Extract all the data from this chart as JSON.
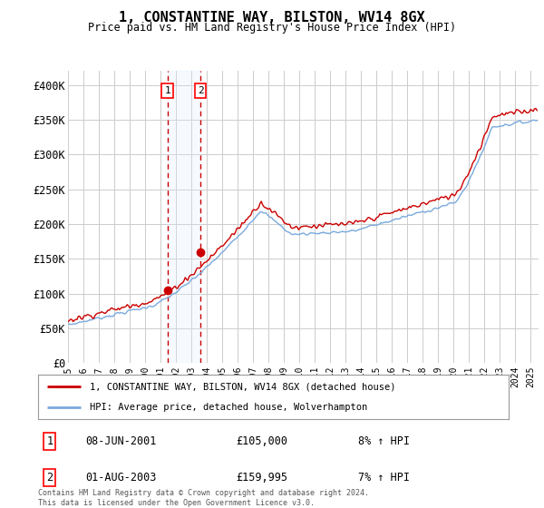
{
  "title": "1, CONSTANTINE WAY, BILSTON, WV14 8GX",
  "subtitle": "Price paid vs. HM Land Registry's House Price Index (HPI)",
  "ylabel_ticks": [
    "£0",
    "£50K",
    "£100K",
    "£150K",
    "£200K",
    "£250K",
    "£300K",
    "£350K",
    "£400K"
  ],
  "ytick_values": [
    0,
    50000,
    100000,
    150000,
    200000,
    250000,
    300000,
    350000,
    400000
  ],
  "ylim": [
    0,
    420000
  ],
  "xlim_start": 1995.0,
  "xlim_end": 2025.5,
  "sale1_date": 2001.44,
  "sale1_price": 105000,
  "sale1_label": "08-JUN-2001",
  "sale1_pct": "8% ↑ HPI",
  "sale2_date": 2003.58,
  "sale2_price": 159995,
  "sale2_label": "01-AUG-2003",
  "sale2_pct": "7% ↑ HPI",
  "line_color_red": "#cc0000",
  "line_color_blue": "#7aaadd",
  "shade_color": "#ddeeff",
  "vline_color": "#cc0000",
  "grid_color": "#cccccc",
  "bg_color": "#ffffff",
  "legend_label_red": "1, CONSTANTINE WAY, BILSTON, WV14 8GX (detached house)",
  "legend_label_blue": "HPI: Average price, detached house, Wolverhampton",
  "footnote": "Contains HM Land Registry data © Crown copyright and database right 2024.\nThis data is licensed under the Open Government Licence v3.0.",
  "xtick_years": [
    1995,
    1996,
    1997,
    1998,
    1999,
    2000,
    2001,
    2002,
    2003,
    2004,
    2005,
    2006,
    2007,
    2008,
    2009,
    2010,
    2011,
    2012,
    2013,
    2014,
    2015,
    2016,
    2017,
    2018,
    2019,
    2020,
    2021,
    2022,
    2023,
    2024,
    2025
  ]
}
